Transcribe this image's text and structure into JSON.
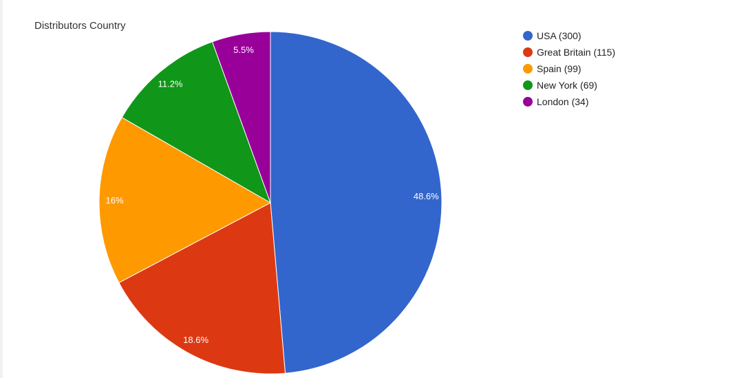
{
  "chart_data": {
    "type": "pie",
    "title": "Distributors Country",
    "legend_position": "right",
    "slices": [
      {
        "label": "USA",
        "value": 300,
        "legend_label": "USA (300)",
        "percent_label": "48.6%",
        "color": "#3366cc"
      },
      {
        "label": "Great Britain",
        "value": 115,
        "legend_label": "Great Britain (115)",
        "percent_label": "18.6%",
        "color": "#dc3912"
      },
      {
        "label": "Spain",
        "value": 99,
        "legend_label": "Spain (99)",
        "percent_label": "16%",
        "color": "#ff9900"
      },
      {
        "label": "New York",
        "value": 69,
        "legend_label": "New York (69)",
        "percent_label": "11.2%",
        "color": "#109618"
      },
      {
        "label": "London",
        "value": 34,
        "legend_label": "London (34)",
        "percent_label": "5.5%",
        "color": "#990099"
      }
    ]
  }
}
